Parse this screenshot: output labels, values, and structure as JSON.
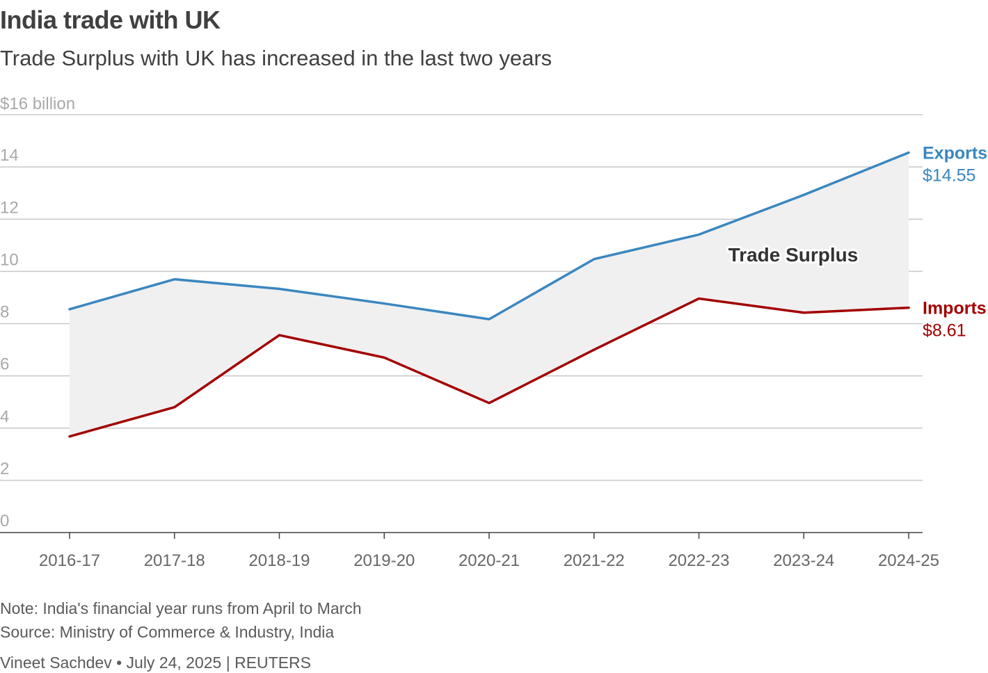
{
  "header": {
    "title": "India trade with UK",
    "subtitle": "Trade Surplus with UK has increased in the last two years"
  },
  "chart_data": {
    "type": "line",
    "y_unit_label": "$16 billion",
    "ylim": [
      0,
      16
    ],
    "y_ticks": [
      "0",
      "2",
      "4",
      "6",
      "8",
      "10",
      "12",
      "14"
    ],
    "categories": [
      "2016-17",
      "2017-18",
      "2018-19",
      "2019-20",
      "2020-21",
      "2021-22",
      "2022-23",
      "2023-24",
      "2024-25"
    ],
    "series": [
      {
        "name": "Exports",
        "end_label": "$14.55",
        "color": "#3a87c0",
        "values": [
          8.55,
          9.7,
          9.33,
          8.77,
          8.17,
          10.47,
          11.41,
          12.93,
          14.55
        ]
      },
      {
        "name": "Imports",
        "end_label": "$8.61",
        "color": "#a30000",
        "values": [
          3.68,
          4.8,
          7.56,
          6.7,
          4.96,
          7.0,
          8.96,
          8.42,
          8.61
        ]
      }
    ],
    "area_label": "Trade Surplus",
    "area_color": "#f0f0f0"
  },
  "footer": {
    "note": "Note: India's financial year runs from April to March",
    "source": "Source: Ministry of Commerce & Industry, India",
    "credit": "Vineet Sachdev • July 24, 2025 | REUTERS"
  }
}
